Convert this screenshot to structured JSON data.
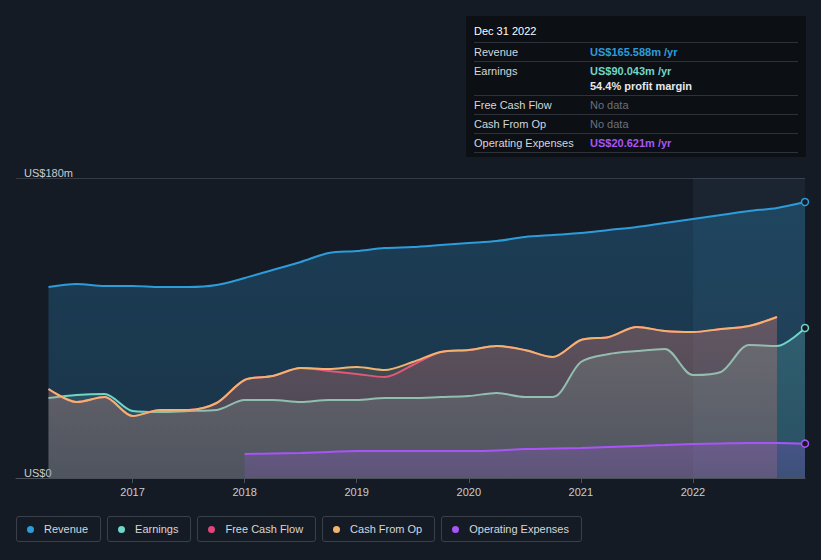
{
  "chart_data": {
    "type": "line",
    "x": [
      2016.25,
      2016.5,
      2016.75,
      2017.0,
      2017.25,
      2017.5,
      2017.75,
      2018.0,
      2018.25,
      2018.5,
      2018.75,
      2019.0,
      2019.25,
      2019.5,
      2019.75,
      2020.0,
      2020.25,
      2020.5,
      2020.75,
      2021.0,
      2021.25,
      2021.5,
      2021.75,
      2022.0,
      2022.25,
      2022.5,
      2022.75,
      2023.0
    ],
    "series": [
      {
        "name": "Revenue",
        "color": "#2d9cdb",
        "values": [
          114.6,
          116.4,
          115.2,
          115.2,
          114.6,
          114.6,
          115.8,
          120,
          124.8,
          129.6,
          135,
          136.2,
          138,
          138.6,
          139.8,
          141,
          142.2,
          144.6,
          145.8,
          147,
          148.8,
          150.6,
          153,
          155.4,
          157.8,
          160.2,
          162,
          165.6
        ]
      },
      {
        "name": "Earnings",
        "color": "#6fd6c8",
        "values": [
          48,
          49.8,
          50.4,
          40.2,
          39.6,
          40.2,
          40.8,
          46.8,
          46.8,
          45.6,
          46.8,
          46.8,
          48,
          48,
          48.6,
          49.2,
          51,
          48.6,
          48.6,
          69.6,
          74.4,
          76.2,
          77.4,
          61.8,
          63.6,
          79.8,
          79.2,
          90.0
        ]
      },
      {
        "name": "Free Cash Flow",
        "color": "#e0457b",
        "values": [
          53.4,
          45.6,
          48.6,
          37.2,
          40.8,
          40.8,
          45,
          58.8,
          61.2,
          66,
          64.2,
          62.4,
          60.6,
          67.8,
          75.6,
          76.8,
          79.2,
          76.8,
          72.6,
          82.8,
          84.6,
          90.6,
          88.2,
          87.6,
          89.4,
          91.2,
          96.6,
          null
        ]
      },
      {
        "name": "Cash From Op",
        "color": "#f2b36e",
        "values": [
          53.4,
          45.6,
          48.6,
          37.2,
          40.8,
          40.8,
          45,
          58.8,
          61.2,
          66,
          65.4,
          66.6,
          64.8,
          69.6,
          75.6,
          76.8,
          79.2,
          76.8,
          72.6,
          82.8,
          84.6,
          90.6,
          88.2,
          87.6,
          89.4,
          91.2,
          96.6,
          null
        ]
      },
      {
        "name": "Operating Expenses",
        "color": "#a855f7",
        "values": [
          null,
          null,
          null,
          null,
          null,
          null,
          null,
          14.4,
          14.7,
          15,
          15.6,
          16.2,
          16.2,
          16.2,
          16.2,
          16.2,
          16.5,
          17.4,
          17.7,
          18,
          18.6,
          19.2,
          19.8,
          20.4,
          20.7,
          21,
          21,
          20.6
        ]
      }
    ],
    "xlim": [
      2015.96,
      2023.0
    ],
    "xticks": [
      2017,
      2018,
      2019,
      2020,
      2021,
      2022
    ],
    "ylim": [
      0,
      180
    ],
    "yticks": [
      {
        "value": 0,
        "label": "US$0"
      },
      {
        "value": 180,
        "label": "US$180m"
      }
    ],
    "grid": true,
    "legend": "bottom",
    "annotation": {
      "title": "Dec 31 2022",
      "rows": [
        {
          "label": "Revenue",
          "value": "US$165.588m /yr"
        },
        {
          "label": "Earnings",
          "value": "US$90.043m /yr",
          "note": "54.4% profit margin"
        },
        {
          "label": "Free Cash Flow",
          "value": "No data"
        },
        {
          "label": "Cash From Op",
          "value": "No data"
        },
        {
          "label": "Operating Expenses",
          "value": "US$20.621m /yr"
        }
      ]
    }
  }
}
